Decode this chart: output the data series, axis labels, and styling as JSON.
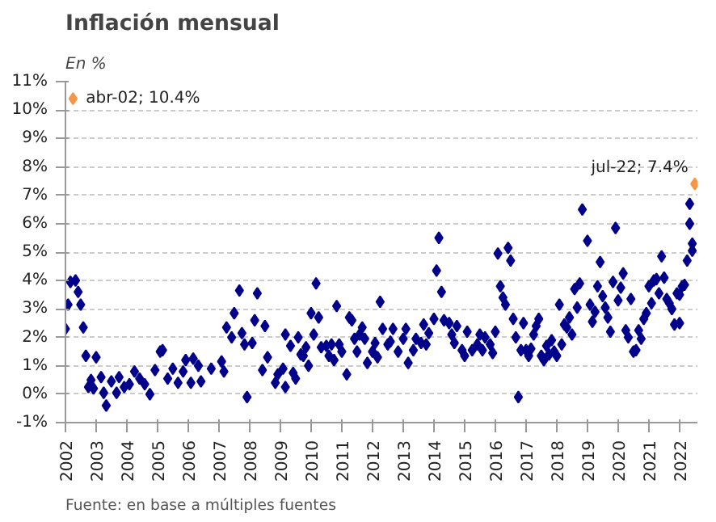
{
  "chart_data": {
    "type": "scatter",
    "title": "Inflación mensual",
    "subtitle": "En %",
    "annotations": [
      "Fuente: en base a múltiples fuentes"
    ],
    "xlim": [
      "2002-01",
      "2022-08"
    ],
    "xticks": [
      "2002",
      "2003",
      "2004",
      "2005",
      "2006",
      "2007",
      "2008",
      "2009",
      "2010",
      "2011",
      "2012",
      "2013",
      "2014",
      "2015",
      "2016",
      "2017",
      "2018",
      "2019",
      "2020",
      "2021",
      "2022"
    ],
    "ylim": [
      -1,
      11
    ],
    "yticks": [
      {
        "value": -1,
        "label": "-1%"
      },
      {
        "value": 0,
        "label": "0%"
      },
      {
        "value": 1,
        "label": "1%"
      },
      {
        "value": 2,
        "label": "2%"
      },
      {
        "value": 3,
        "label": "3%"
      },
      {
        "value": 4,
        "label": "4%"
      },
      {
        "value": 5,
        "label": "5%"
      },
      {
        "value": 6,
        "label": "6%"
      },
      {
        "value": 7,
        "label": "7%"
      },
      {
        "value": 8,
        "label": "8%"
      },
      {
        "value": 9,
        "label": "9%"
      },
      {
        "value": 10,
        "label": "10%"
      },
      {
        "value": 11,
        "label": "11%"
      }
    ],
    "grid": "y",
    "marker": "diamond",
    "series": [
      {
        "color": "#00008b",
        "x": [
          "2002-01",
          "2002-02",
          "2002-03",
          "2002-05",
          "2002-06",
          "2002-07",
          "2002-08",
          "2002-09",
          "2002-10",
          "2002-11",
          "2002-12",
          "2003-01",
          "2003-03",
          "2003-04",
          "2003-05",
          "2003-07",
          "2003-09",
          "2003-10",
          "2003-12",
          "2004-02",
          "2004-04",
          "2004-06",
          "2004-08",
          "2004-10",
          "2004-12",
          "2005-02",
          "2005-03",
          "2005-05",
          "2005-07",
          "2005-09",
          "2005-11",
          "2005-12",
          "2006-02",
          "2006-03",
          "2006-05",
          "2006-06",
          "2006-10",
          "2007-02",
          "2007-03",
          "2007-04",
          "2007-06",
          "2007-07",
          "2007-09",
          "2007-10",
          "2007-11",
          "2007-12",
          "2008-02",
          "2008-03",
          "2008-04",
          "2008-06",
          "2008-07",
          "2008-08",
          "2008-11",
          "2008-12",
          "2009-02",
          "2009-03",
          "2009-03",
          "2009-05",
          "2009-06",
          "2009-07",
          "2009-08",
          "2009-09",
          "2009-10",
          "2009-11",
          "2009-12",
          "2010-01",
          "2010-02",
          "2010-03",
          "2010-04",
          "2010-05",
          "2010-07",
          "2010-08",
          "2010-09",
          "2010-10",
          "2010-11",
          "2010-12",
          "2011-01",
          "2011-03",
          "2011-04",
          "2011-05",
          "2011-06",
          "2011-07",
          "2011-08",
          "2011-09",
          "2011-10",
          "2011-11",
          "2012-01",
          "2012-02",
          "2012-03",
          "2012-04",
          "2012-05",
          "2012-07",
          "2012-08",
          "2012-09",
          "2012-11",
          "2013-01",
          "2013-02",
          "2013-03",
          "2013-05",
          "2013-06",
          "2013-08",
          "2013-09",
          "2013-10",
          "2013-11",
          "2014-01",
          "2014-02",
          "2014-03",
          "2014-04",
          "2014-05",
          "2014-07",
          "2014-08",
          "2014-09",
          "2014-10",
          "2014-12",
          "2015-01",
          "2015-02",
          "2015-04",
          "2015-06",
          "2015-07",
          "2015-08",
          "2015-09",
          "2015-11",
          "2015-12",
          "2016-01",
          "2016-02",
          "2016-03",
          "2016-04",
          "2016-05",
          "2016-06",
          "2016-07",
          "2016-08",
          "2016-09",
          "2016-10",
          "2016-11",
          "2016-12",
          "2017-01",
          "2017-02",
          "2017-03",
          "2017-04",
          "2017-05",
          "2017-06",
          "2017-07",
          "2017-08",
          "2017-09",
          "2017-10",
          "2017-11",
          "2017-12",
          "2018-01",
          "2018-02",
          "2018-03",
          "2018-04",
          "2018-05",
          "2018-06",
          "2018-07",
          "2018-08",
          "2018-09",
          "2018-10",
          "2018-11",
          "2019-01",
          "2019-02",
          "2019-03",
          "2019-04",
          "2019-05",
          "2019-06",
          "2019-07",
          "2019-08",
          "2019-09",
          "2019-10",
          "2019-11",
          "2019-12",
          "2020-01",
          "2020-02",
          "2020-03",
          "2020-04",
          "2020-05",
          "2020-06",
          "2020-07",
          "2020-08",
          "2020-09",
          "2020-10",
          "2020-11",
          "2020-12",
          "2021-01",
          "2021-02",
          "2021-03",
          "2021-04",
          "2021-05",
          "2021-06",
          "2021-07",
          "2021-08",
          "2021-09",
          "2021-10",
          "2021-11",
          "2021-12",
          "2022-01",
          "2022-01",
          "2022-02",
          "2022-03",
          "2022-04",
          "2022-05",
          "2022-05",
          "2022-06",
          "2022-06"
        ],
        "values": [
          2.3,
          3.15,
          3.95,
          4.0,
          3.6,
          3.15,
          2.35,
          1.35,
          0.25,
          0.5,
          0.2,
          1.3,
          0.6,
          0.05,
          -0.4,
          0.45,
          0.05,
          0.6,
          0.25,
          0.35,
          0.8,
          0.55,
          0.35,
          0.0,
          0.85,
          1.5,
          1.55,
          0.55,
          0.9,
          0.4,
          0.8,
          1.2,
          0.4,
          1.25,
          1.0,
          0.45,
          0.9,
          1.15,
          0.8,
          2.35,
          2.0,
          2.85,
          3.65,
          2.15,
          1.75,
          -0.1,
          1.8,
          2.6,
          3.55,
          0.85,
          2.4,
          1.3,
          0.4,
          0.7,
          0.9,
          0.25,
          2.1,
          1.7,
          0.75,
          0.55,
          2.0,
          1.4,
          1.35,
          1.65,
          1.0,
          2.85,
          2.1,
          3.9,
          2.7,
          1.65,
          1.7,
          1.35,
          1.75,
          1.2,
          3.1,
          1.75,
          1.5,
          0.7,
          2.7,
          2.6,
          1.95,
          1.5,
          2.1,
          2.35,
          1.95,
          1.1,
          1.5,
          1.8,
          1.3,
          3.25,
          2.3,
          1.75,
          1.85,
          2.3,
          1.5,
          1.95,
          2.3,
          1.1,
          1.55,
          1.95,
          1.8,
          2.45,
          1.75,
          2.15,
          2.65,
          4.35,
          5.5,
          3.6,
          2.6,
          2.5,
          2.1,
          1.8,
          2.4,
          1.55,
          1.35,
          2.2,
          1.55,
          1.75,
          2.1,
          1.55,
          2.0,
          1.75,
          1.45,
          2.2,
          4.95,
          3.8,
          3.4,
          3.15,
          5.15,
          4.7,
          2.65,
          2.0,
          -0.1,
          1.55,
          2.5,
          1.55,
          1.35,
          1.6,
          2.1,
          2.4,
          2.65,
          1.35,
          1.2,
          1.7,
          1.4,
          1.9,
          1.5,
          1.35,
          3.15,
          1.75,
          2.45,
          2.35,
          2.7,
          2.1,
          3.7,
          3.05,
          3.9,
          6.5,
          5.4,
          3.15,
          2.55,
          2.9,
          3.8,
          4.65,
          3.45,
          3.05,
          2.7,
          2.2,
          3.95,
          5.85,
          3.3,
          3.75,
          4.25,
          2.25,
          2.0,
          3.35,
          1.5,
          1.55,
          2.25,
          1.95,
          2.65,
          2.85,
          3.8,
          3.2,
          4.0,
          4.05,
          3.55,
          4.85,
          4.1,
          3.35,
          3.2,
          3.0,
          2.45,
          3.55,
          3.5,
          2.5,
          3.8,
          3.85,
          4.7,
          6.7,
          6.0,
          5.05,
          5.3
        ]
      },
      {
        "color": "#f79646",
        "x": [
          "2002-04",
          "2022-07"
        ],
        "values": [
          10.4,
          7.4
        ],
        "value_labels": [
          "abr-02; 10.4%",
          "jul-22; 7.4%"
        ]
      }
    ]
  }
}
